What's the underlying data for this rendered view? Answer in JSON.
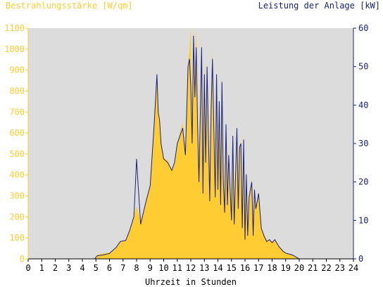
{
  "chart_data": {
    "type": "area",
    "title_left": "Bestrahlungsstärke [W/qm]",
    "title_right": "Leistung der Anlage [kW]",
    "xlabel": "Uhrzeit in Stunden",
    "xlim": [
      0,
      24
    ],
    "ylim_left": [
      0,
      1100
    ],
    "ylim_right": [
      0,
      60
    ],
    "x_ticks": [
      "0",
      "1",
      "2",
      "3",
      "4",
      "5",
      "6",
      "7",
      "8",
      "9",
      "10",
      "11",
      "12",
      "13",
      "14",
      "15",
      "16",
      "17",
      "18",
      "19",
      "20",
      "21",
      "22",
      "23",
      "24"
    ],
    "y_left_ticks": [
      "0",
      "100",
      "200",
      "300",
      "400",
      "500",
      "600",
      "700",
      "800",
      "900",
      "1000",
      "1100"
    ],
    "y_right_ticks": [
      "0",
      "10",
      "20",
      "30",
      "40",
      "50",
      "60"
    ],
    "grid": false,
    "colors": {
      "plot_bg": "#dcdcdc",
      "irradiance": "#ffcc33",
      "power": "#1a237e",
      "left_axis": "#ffcc33",
      "right_axis": "#1a237e"
    },
    "series": [
      {
        "unit": "W/qm",
        "axis": "left",
        "style": "filled-area",
        "x": [
          0,
          4.9,
          5.1,
          5.5,
          6,
          6.5,
          6.8,
          7.2,
          7.5,
          7.8,
          8,
          8.1,
          8.3,
          8.5,
          8.7,
          9,
          9.3,
          9.5,
          9.6,
          9.7,
          9.8,
          10,
          10.3,
          10.6,
          10.8,
          11,
          11.2,
          11.4,
          11.6,
          11.8,
          11.9,
          12,
          12.1,
          12.2,
          12.3,
          12.4,
          12.5,
          12.6,
          12.8,
          12.9,
          13,
          13.1,
          13.2,
          13.4,
          13.5,
          13.6,
          13.8,
          13.9,
          14,
          14.1,
          14.2,
          14.3,
          14.4,
          14.5,
          14.6,
          14.7,
          14.8,
          15,
          15.1,
          15.2,
          15.4,
          15.5,
          15.6,
          15.7,
          15.8,
          15.9,
          16,
          16.1,
          16.2,
          16.3,
          16.5,
          16.6,
          16.7,
          16.8,
          17,
          17.2,
          17.4,
          17.6,
          17.8,
          18,
          18.2,
          18.5,
          18.8,
          19,
          19.2,
          19.5,
          19.8,
          20,
          20.1,
          24
        ],
        "values": [
          0,
          0,
          20,
          25,
          30,
          55,
          85,
          90,
          140,
          200,
          250,
          230,
          180,
          220,
          280,
          350,
          650,
          880,
          700,
          650,
          550,
          480,
          470,
          420,
          460,
          550,
          600,
          650,
          500,
          920,
          1000,
          1100,
          600,
          1100,
          850,
          1100,
          700,
          400,
          1050,
          350,
          950,
          500,
          920,
          300,
          720,
          1000,
          300,
          900,
          350,
          760,
          280,
          850,
          400,
          240,
          650,
          280,
          500,
          180,
          600,
          160,
          620,
          240,
          540,
          560,
          150,
          580,
          100,
          400,
          120,
          300,
          380,
          120,
          340,
          250,
          320,
          140,
          120,
          90,
          90,
          80,
          95,
          60,
          40,
          30,
          25,
          20,
          10,
          0,
          0,
          0
        ]
      },
      {
        "unit": "kW",
        "axis": "right",
        "style": "line",
        "x": [
          0,
          4.9,
          5.1,
          5.5,
          6,
          6.5,
          6.8,
          7.2,
          7.5,
          7.8,
          8,
          8.1,
          8.3,
          8.5,
          8.7,
          9,
          9.3,
          9.5,
          9.6,
          9.7,
          9.8,
          10,
          10.3,
          10.6,
          10.8,
          11,
          11.2,
          11.4,
          11.6,
          11.8,
          11.9,
          12,
          12.1,
          12.2,
          12.3,
          12.4,
          12.5,
          12.6,
          12.8,
          12.9,
          13,
          13.1,
          13.2,
          13.4,
          13.5,
          13.6,
          13.8,
          13.9,
          14,
          14.1,
          14.2,
          14.3,
          14.4,
          14.5,
          14.6,
          14.7,
          14.8,
          15,
          15.1,
          15.2,
          15.4,
          15.5,
          15.6,
          15.7,
          15.8,
          15.9,
          16,
          16.1,
          16.2,
          16.3,
          16.5,
          16.6,
          16.7,
          16.8,
          17,
          17.2,
          17.4,
          17.6,
          17.8,
          18,
          18.2,
          18.5,
          18.8,
          19,
          19.2,
          19.5,
          19.8,
          20,
          20.1,
          24
        ],
        "values": [
          0,
          0,
          0.8,
          1,
          1.4,
          3,
          4.5,
          4.8,
          7.5,
          11,
          26,
          20,
          9,
          12,
          15,
          19,
          35,
          48,
          38,
          36,
          30,
          26,
          25,
          23,
          25,
          30,
          32,
          34,
          27,
          50,
          52,
          45,
          30,
          58,
          42,
          55,
          35,
          20,
          55,
          17,
          48,
          25,
          50,
          15,
          39,
          52,
          16,
          48,
          18,
          41,
          14,
          46,
          20,
          12,
          35,
          14,
          27,
          10,
          32,
          9,
          34,
          13,
          29,
          30,
          8,
          31,
          5,
          22,
          6,
          16,
          20,
          6,
          18,
          13,
          17,
          8,
          6,
          4.5,
          5,
          4.2,
          5,
          3.2,
          2,
          1.5,
          1.3,
          1,
          0.4,
          0,
          0,
          0
        ]
      }
    ]
  }
}
